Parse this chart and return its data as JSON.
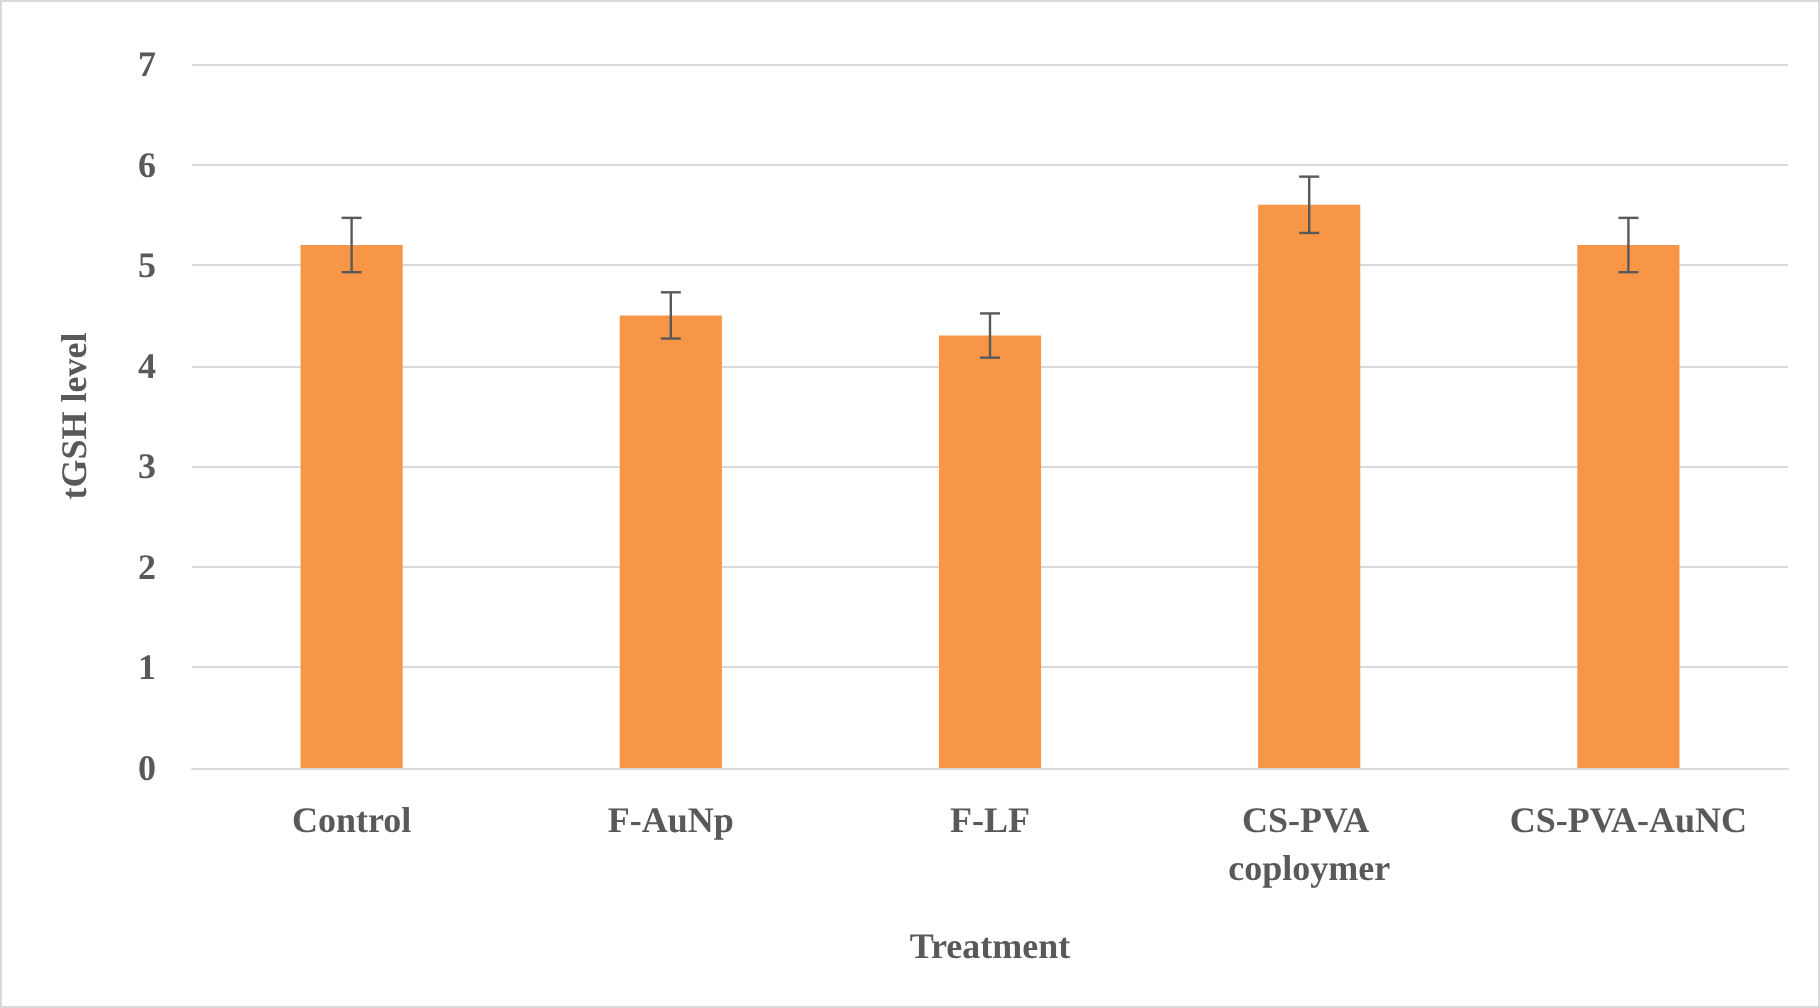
{
  "chart_data": {
    "type": "bar",
    "xlabel": "Treatment",
    "ylabel": "tGSH level",
    "categories": [
      "Control",
      "F-AuNp",
      "F-LF",
      "CS-PVA coploymer",
      "CS-PVA-AuNC"
    ],
    "values": [
      5.2,
      4.5,
      4.3,
      5.6,
      5.2
    ],
    "errors": [
      0.27,
      0.23,
      0.22,
      0.28,
      0.27
    ],
    "color": "#f79646",
    "ylim": [
      0,
      7
    ],
    "yticks": [
      0,
      1,
      2,
      3,
      4,
      5,
      6,
      7
    ],
    "grid": "y"
  }
}
